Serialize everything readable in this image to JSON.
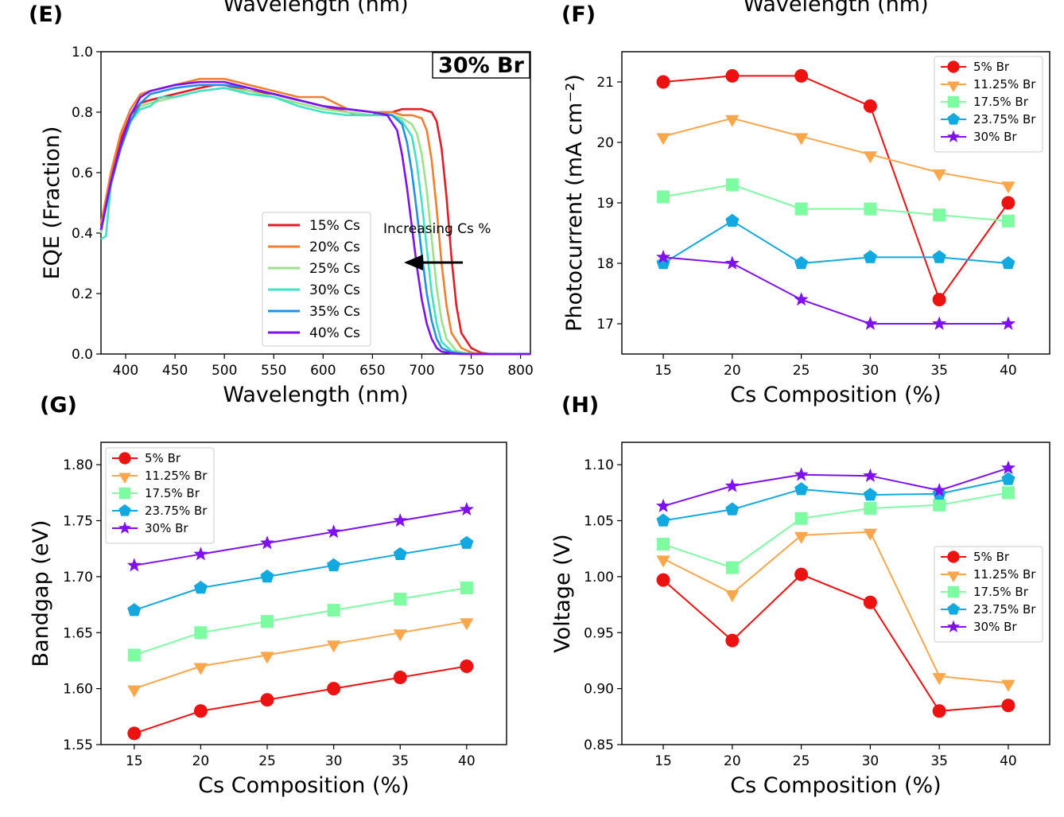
{
  "figure": {
    "panel_e": "(E)",
    "panel_f": "(F)",
    "panel_g": "(G)",
    "panel_h": "(H)",
    "cut_top_label_left": "Wavelength (nm)",
    "cut_top_label_right": "Wavelength (nm)"
  },
  "colors": {
    "series": [
      "#ee1111",
      "#fca64b",
      "#7dfca1",
      "#12a9e1",
      "#7f10ef"
    ],
    "eqe": [
      "#e51c23",
      "#f07f30",
      "#9ae38a",
      "#3fe3c4",
      "#2191e6",
      "#7f10ef"
    ]
  },
  "chart_data": [
    {
      "type": "line",
      "id": "E",
      "xlabel": "Wavelength (nm)",
      "ylabel": "EQE (Fraction)",
      "xlim": [
        375,
        810
      ],
      "ylim": [
        0,
        1.0
      ],
      "xticks": [
        "400",
        "450",
        "500",
        "550",
        "600",
        "650",
        "700",
        "750",
        "800"
      ],
      "yticks": [
        "0.0",
        "0.2",
        "0.4",
        "0.6",
        "0.8",
        "1.0"
      ],
      "box_label": "30% Br",
      "annotation": "Increasing Cs %",
      "series": [
        {
          "name": "15% Cs",
          "x": [
            375,
            385,
            395,
            405,
            415,
            425,
            450,
            475,
            490,
            500,
            525,
            550,
            575,
            600,
            625,
            640,
            650,
            660,
            670,
            680,
            690,
            700,
            710,
            715,
            720,
            725,
            730,
            735,
            740,
            750,
            760,
            770,
            810
          ],
          "y": [
            0.43,
            0.58,
            0.71,
            0.79,
            0.83,
            0.84,
            0.86,
            0.88,
            0.89,
            0.89,
            0.87,
            0.86,
            0.84,
            0.82,
            0.8,
            0.79,
            0.79,
            0.8,
            0.8,
            0.81,
            0.81,
            0.81,
            0.8,
            0.77,
            0.68,
            0.52,
            0.32,
            0.16,
            0.07,
            0.02,
            0.004,
            0,
            0
          ]
        },
        {
          "name": "20% Cs",
          "x": [
            375,
            385,
            395,
            405,
            415,
            425,
            450,
            475,
            490,
            500,
            525,
            550,
            575,
            600,
            625,
            650,
            670,
            680,
            690,
            700,
            705,
            710,
            715,
            720,
            725,
            730,
            740,
            750,
            760,
            810
          ],
          "y": [
            0.43,
            0.6,
            0.73,
            0.81,
            0.86,
            0.87,
            0.89,
            0.91,
            0.91,
            0.91,
            0.89,
            0.87,
            0.85,
            0.85,
            0.81,
            0.8,
            0.8,
            0.79,
            0.79,
            0.78,
            0.74,
            0.64,
            0.48,
            0.3,
            0.16,
            0.07,
            0.02,
            0.005,
            0,
            0
          ]
        },
        {
          "name": "25% Cs",
          "x": [
            375,
            385,
            395,
            405,
            415,
            425,
            450,
            475,
            500,
            525,
            550,
            575,
            600,
            625,
            650,
            670,
            680,
            690,
            695,
            700,
            705,
            710,
            715,
            720,
            725,
            735,
            745,
            755,
            810
          ],
          "y": [
            0.4,
            0.56,
            0.69,
            0.78,
            0.82,
            0.83,
            0.85,
            0.87,
            0.88,
            0.87,
            0.85,
            0.83,
            0.81,
            0.8,
            0.79,
            0.79,
            0.78,
            0.76,
            0.73,
            0.66,
            0.54,
            0.38,
            0.22,
            0.11,
            0.05,
            0.01,
            0.002,
            0,
            0
          ]
        },
        {
          "name": "30% Cs",
          "x": [
            375,
            380,
            385,
            395,
            405,
            415,
            425,
            435,
            450,
            475,
            500,
            525,
            550,
            575,
            600,
            625,
            650,
            670,
            680,
            690,
            695,
            700,
            705,
            710,
            715,
            720,
            730,
            740,
            750,
            810
          ],
          "y": [
            0.38,
            0.39,
            0.56,
            0.69,
            0.77,
            0.81,
            0.82,
            0.85,
            0.85,
            0.87,
            0.88,
            0.86,
            0.85,
            0.82,
            0.8,
            0.79,
            0.79,
            0.79,
            0.77,
            0.72,
            0.63,
            0.5,
            0.35,
            0.2,
            0.1,
            0.04,
            0.01,
            0.002,
            0,
            0
          ]
        },
        {
          "name": "35% Cs",
          "x": [
            375,
            385,
            395,
            405,
            415,
            425,
            450,
            475,
            500,
            525,
            550,
            575,
            600,
            625,
            650,
            670,
            680,
            685,
            690,
            695,
            700,
            705,
            710,
            715,
            720,
            730,
            740,
            750,
            810
          ],
          "y": [
            0.41,
            0.56,
            0.68,
            0.77,
            0.83,
            0.86,
            0.88,
            0.89,
            0.89,
            0.88,
            0.86,
            0.84,
            0.82,
            0.81,
            0.8,
            0.79,
            0.76,
            0.7,
            0.6,
            0.47,
            0.33,
            0.2,
            0.11,
            0.05,
            0.02,
            0.005,
            0.001,
            0,
            0
          ]
        },
        {
          "name": "40% Cs",
          "x": [
            375,
            385,
            395,
            405,
            415,
            425,
            450,
            475,
            490,
            500,
            525,
            550,
            575,
            600,
            625,
            650,
            665,
            675,
            680,
            685,
            690,
            695,
            700,
            705,
            710,
            715,
            720,
            730,
            740,
            810
          ],
          "y": [
            0.41,
            0.57,
            0.69,
            0.79,
            0.85,
            0.87,
            0.89,
            0.9,
            0.9,
            0.9,
            0.88,
            0.86,
            0.84,
            0.82,
            0.81,
            0.8,
            0.79,
            0.74,
            0.66,
            0.55,
            0.42,
            0.29,
            0.18,
            0.1,
            0.05,
            0.02,
            0.008,
            0.002,
            0,
            0
          ]
        }
      ]
    },
    {
      "type": "line",
      "id": "F",
      "xlabel": "Cs Composition (%)",
      "ylabel": "Photocurrent (mA cm⁻²)",
      "xlim": [
        12,
        43
      ],
      "ylim": [
        16.5,
        21.5
      ],
      "categories": [
        15,
        20,
        25,
        30,
        35,
        40
      ],
      "xticks": [
        "15",
        "20",
        "25",
        "30",
        "35",
        "40"
      ],
      "yticks": [
        "17",
        "18",
        "19",
        "20",
        "21"
      ],
      "ytick_values": [
        17,
        18,
        19,
        20,
        21
      ],
      "series": [
        {
          "name": "5% Br",
          "values": [
            21.0,
            21.1,
            21.1,
            20.6,
            17.4,
            19.0
          ]
        },
        {
          "name": "11.25% Br",
          "values": [
            20.1,
            20.4,
            20.1,
            19.8,
            19.5,
            19.3
          ]
        },
        {
          "name": "17.5% Br",
          "values": [
            19.1,
            19.3,
            18.9,
            18.9,
            18.8,
            18.7
          ]
        },
        {
          "name": "23.75% Br",
          "values": [
            18.0,
            18.7,
            18.0,
            18.1,
            18.1,
            18.0
          ]
        },
        {
          "name": "30% Br",
          "values": [
            18.1,
            18.0,
            17.4,
            17.0,
            17.0,
            17.0
          ]
        }
      ]
    },
    {
      "type": "line",
      "id": "G",
      "xlabel": "Cs Composition (%)",
      "ylabel": "Bandgap (eV)",
      "xlim": [
        12.5,
        43
      ],
      "ylim": [
        1.55,
        1.82
      ],
      "categories": [
        15,
        20,
        25,
        30,
        35,
        40
      ],
      "xticks": [
        "15",
        "20",
        "25",
        "30",
        "35",
        "40"
      ],
      "yticks": [
        "1.55",
        "1.60",
        "1.65",
        "1.70",
        "1.75",
        "1.80"
      ],
      "ytick_values": [
        1.55,
        1.6,
        1.65,
        1.7,
        1.75,
        1.8
      ],
      "series": [
        {
          "name": "5% Br",
          "values": [
            1.56,
            1.58,
            1.59,
            1.6,
            1.61,
            1.62
          ]
        },
        {
          "name": "11.25% Br",
          "values": [
            1.6,
            1.62,
            1.63,
            1.64,
            1.65,
            1.66
          ]
        },
        {
          "name": "17.5% Br",
          "values": [
            1.63,
            1.65,
            1.66,
            1.67,
            1.68,
            1.69
          ]
        },
        {
          "name": "23.75% Br",
          "values": [
            1.67,
            1.69,
            1.7,
            1.71,
            1.72,
            1.73
          ]
        },
        {
          "name": "30% Br",
          "values": [
            1.71,
            1.72,
            1.73,
            1.74,
            1.75,
            1.76
          ]
        }
      ]
    },
    {
      "type": "line",
      "id": "H",
      "xlabel": "Cs Composition (%)",
      "ylabel": "Voltage (V)",
      "xlim": [
        12,
        43
      ],
      "ylim": [
        0.85,
        1.12
      ],
      "categories": [
        15,
        20,
        25,
        30,
        35,
        40
      ],
      "xticks": [
        "15",
        "20",
        "25",
        "30",
        "35",
        "40"
      ],
      "yticks": [
        "0.85",
        "0.90",
        "0.95",
        "1.00",
        "1.05",
        "1.10"
      ],
      "ytick_values": [
        0.85,
        0.9,
        0.95,
        1.0,
        1.05,
        1.1
      ],
      "series": [
        {
          "name": "5% Br",
          "values": [
            0.997,
            0.943,
            1.002,
            0.977,
            0.88,
            0.885
          ]
        },
        {
          "name": "11.25% Br",
          "values": [
            1.016,
            0.985,
            1.037,
            1.04,
            0.911,
            0.905
          ]
        },
        {
          "name": "17.5% Br",
          "values": [
            1.029,
            1.008,
            1.052,
            1.061,
            1.064,
            1.075
          ]
        },
        {
          "name": "23.75% Br",
          "values": [
            1.05,
            1.06,
            1.078,
            1.073,
            1.074,
            1.087
          ]
        },
        {
          "name": "30% Br",
          "values": [
            1.063,
            1.081,
            1.091,
            1.09,
            1.077,
            1.097
          ]
        }
      ]
    }
  ]
}
